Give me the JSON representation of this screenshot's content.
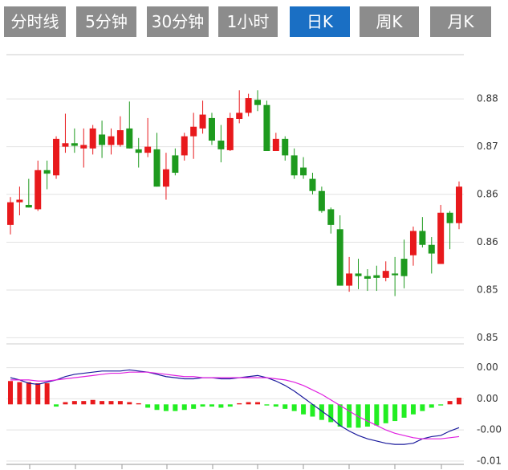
{
  "tabs": {
    "items": [
      "分时线",
      "5分钟",
      "30分钟",
      "1小时",
      "日K",
      "周K",
      "月K"
    ],
    "selected": 4,
    "color": "#8c8c8c",
    "selected_color": "#1a6fc4"
  },
  "chart_data": [
    {
      "type": "candlestick",
      "up_color": "#e8191c",
      "down_color": "#1e9a1e",
      "ylim": [
        0.8468,
        0.8801
      ],
      "yticks": [
        {
          "value": 0.875,
          "label": "0.88"
        },
        {
          "value": 0.8695,
          "label": "0.87"
        },
        {
          "value": 0.864,
          "label": "0.86"
        },
        {
          "value": 0.8585,
          "label": "0.86"
        },
        {
          "value": 0.853,
          "label": "0.85"
        },
        {
          "value": 0.8475,
          "label": "0.85"
        }
      ],
      "grid": true,
      "open": [
        0.8605,
        0.8631,
        0.8628,
        0.8623,
        0.8668,
        0.8662,
        0.8695,
        0.8699,
        0.8693,
        0.8693,
        0.8709,
        0.8697,
        0.8697,
        0.8716,
        0.8692,
        0.8688,
        0.8692,
        0.8649,
        0.8685,
        0.8685,
        0.8707,
        0.8716,
        0.8728,
        0.8702,
        0.8691,
        0.8727,
        0.8734,
        0.8749,
        0.8743,
        0.869,
        0.8704,
        0.8685,
        0.8671,
        0.8658,
        0.8644,
        0.8623,
        0.86,
        0.8535,
        0.8549,
        0.8546,
        0.8547,
        0.8544,
        0.8549,
        0.8566,
        0.857,
        0.8598,
        0.8582,
        0.856,
        0.8619,
        0.8607
      ],
      "high": [
        0.8637,
        0.8649,
        0.8658,
        0.8679,
        0.8679,
        0.8707,
        0.8733,
        0.8716,
        0.8716,
        0.872,
        0.8725,
        0.8716,
        0.873,
        0.8747,
        0.8705,
        0.8728,
        0.8711,
        0.8688,
        0.8693,
        0.8711,
        0.8734,
        0.8748,
        0.8734,
        0.872,
        0.8734,
        0.876,
        0.8756,
        0.876,
        0.8748,
        0.8711,
        0.8707,
        0.8693,
        0.8683,
        0.8665,
        0.8649,
        0.8625,
        0.8616,
        0.8568,
        0.8566,
        0.8554,
        0.8558,
        0.8563,
        0.8568,
        0.8588,
        0.8603,
        0.8614,
        0.8591,
        0.8628,
        0.8621,
        0.8655
      ],
      "low": [
        0.8594,
        0.8616,
        0.8625,
        0.8621,
        0.8646,
        0.8658,
        0.8688,
        0.8688,
        0.8671,
        0.8686,
        0.8682,
        0.8686,
        0.8695,
        0.8693,
        0.8671,
        0.8683,
        0.8649,
        0.8634,
        0.8662,
        0.8679,
        0.8681,
        0.871,
        0.8697,
        0.8677,
        0.869,
        0.8722,
        0.873,
        0.8736,
        0.869,
        0.869,
        0.8679,
        0.8658,
        0.8658,
        0.864,
        0.8619,
        0.8595,
        0.8535,
        0.8528,
        0.8531,
        0.8529,
        0.8529,
        0.854,
        0.8523,
        0.8532,
        0.8558,
        0.8579,
        0.8549,
        0.856,
        0.8577,
        0.86
      ],
      "close": [
        0.8631,
        0.8634,
        0.8625,
        0.8668,
        0.8664,
        0.8704,
        0.8699,
        0.8696,
        0.8697,
        0.8716,
        0.8697,
        0.8707,
        0.8714,
        0.8693,
        0.8688,
        0.8695,
        0.8649,
        0.8669,
        0.8665,
        0.8707,
        0.8718,
        0.8732,
        0.8702,
        0.8692,
        0.8728,
        0.8734,
        0.8751,
        0.8743,
        0.869,
        0.8704,
        0.8685,
        0.8662,
        0.8662,
        0.8644,
        0.8621,
        0.8605,
        0.8535,
        0.8549,
        0.8546,
        0.8543,
        0.8544,
        0.8552,
        0.8547,
        0.8546,
        0.8598,
        0.8582,
        0.8572,
        0.8619,
        0.8607,
        0.8649
      ]
    },
    {
      "type": "macd",
      "up_color": "#e8191c",
      "down_color": "#22ee22",
      "ylim": [
        -0.0054,
        0.0053
      ],
      "yticks": [
        {
          "value": 0.0033,
          "label": "0.00"
        },
        {
          "value": 0.0005,
          "label": "0.00"
        },
        {
          "value": -0.0023,
          "label": "-0.00"
        },
        {
          "value": -0.0051,
          "label": "-0.01"
        }
      ],
      "grid": true,
      "histogram": [
        0.0021,
        0.002,
        0.002,
        0.0019,
        0.0019,
        -0.0002,
        0.0002,
        0.0003,
        0.0003,
        0.0004,
        0.0003,
        0.0003,
        0.0003,
        0.0002,
        0.0001,
        -0.0003,
        -0.0005,
        -0.0006,
        -0.0006,
        -0.0005,
        -0.0004,
        -0.0002,
        -0.0002,
        -0.0003,
        -0.0002,
        0.0001,
        0.0002,
        0.0002,
        -0.0001,
        -0.0002,
        -0.0004,
        -0.0006,
        -0.0009,
        -0.0011,
        -0.0014,
        -0.0016,
        -0.002,
        -0.0021,
        -0.0021,
        -0.002,
        -0.0019,
        -0.0017,
        -0.0015,
        -0.0012,
        -0.0009,
        -0.0006,
        -0.0003,
        -0.0001,
        0.0003,
        0.0006
      ],
      "series": [
        {
          "color": "#1a1a9c",
          "values": [
            0.0024,
            0.0022,
            0.0019,
            0.0018,
            0.002,
            0.0022,
            0.0025,
            0.0027,
            0.0028,
            0.0029,
            0.003,
            0.003,
            0.003,
            0.0031,
            0.003,
            0.0029,
            0.0027,
            0.0025,
            0.0024,
            0.0023,
            0.0023,
            0.0024,
            0.0024,
            0.0023,
            0.0023,
            0.0024,
            0.0025,
            0.0026,
            0.0024,
            0.0021,
            0.0017,
            0.0012,
            0.0006,
            0.0,
            -0.0006,
            -0.0012,
            -0.0019,
            -0.0024,
            -0.0028,
            -0.0031,
            -0.0033,
            -0.0035,
            -0.0036,
            -0.0036,
            -0.0035,
            -0.0031,
            -0.0029,
            -0.0028,
            -0.0024,
            -0.0021
          ]
        },
        {
          "color": "#e020e0",
          "values": [
            0.0022,
            0.0022,
            0.0022,
            0.0021,
            0.0021,
            0.0022,
            0.0023,
            0.0024,
            0.0025,
            0.0026,
            0.0027,
            0.0028,
            0.0028,
            0.0029,
            0.0029,
            0.0029,
            0.0028,
            0.0027,
            0.0026,
            0.0025,
            0.0025,
            0.0024,
            0.0024,
            0.0024,
            0.0024,
            0.0024,
            0.0024,
            0.0024,
            0.0024,
            0.0023,
            0.0022,
            0.002,
            0.0017,
            0.0013,
            0.0009,
            0.0004,
            -0.0001,
            -0.0006,
            -0.0011,
            -0.0015,
            -0.0019,
            -0.0023,
            -0.0026,
            -0.0028,
            -0.003,
            -0.0031,
            -0.0031,
            -0.0031,
            -0.003,
            -0.0029
          ]
        }
      ]
    }
  ]
}
